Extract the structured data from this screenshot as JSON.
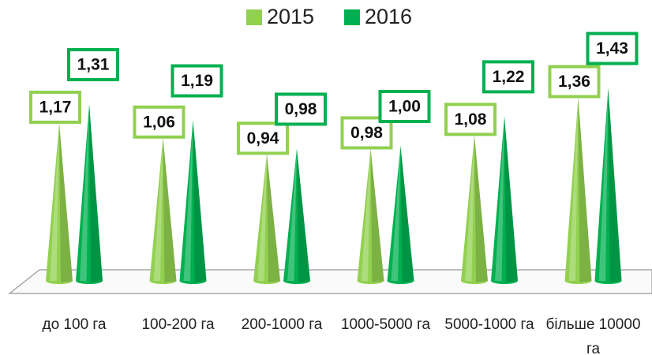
{
  "chart_data": {
    "type": "cone",
    "categories": [
      "до 100 га",
      "100-200 га",
      "200-1000 га",
      "1000-5000 га",
      "5000-1000 га",
      "більше 10000 га"
    ],
    "series": [
      {
        "name": "2015",
        "color": "#92d050",
        "values": [
          1.17,
          1.06,
          0.94,
          0.98,
          1.08,
          1.36
        ],
        "value_labels": [
          "1,17",
          "1,06",
          "0,94",
          "0,98",
          "1,08",
          "1,36"
        ]
      },
      {
        "name": "2016",
        "color": "#00b050",
        "values": [
          1.31,
          1.19,
          0.98,
          1.0,
          1.22,
          1.43
        ],
        "value_labels": [
          "1,31",
          "1,19",
          "0,98",
          "1,00",
          "1,22",
          "1,43"
        ]
      }
    ]
  }
}
